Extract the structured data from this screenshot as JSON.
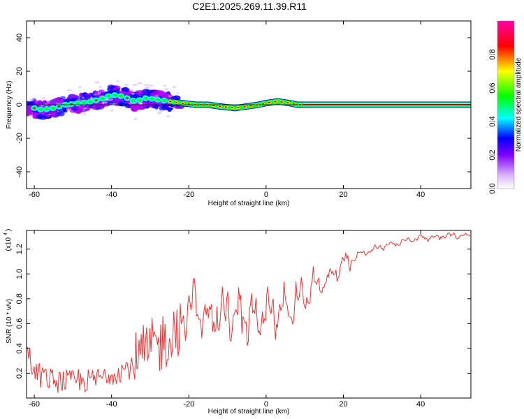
{
  "title": "C2E1.2025.269.11.39.R11",
  "colors": {
    "signal": "#ee3333",
    "background": "#ffffff",
    "axis": "#000000",
    "colorbar": [
      "#ffffff",
      "#b400ff",
      "#0000ff",
      "#00ffff",
      "#00ff00",
      "#ffff00",
      "#ff0000",
      "#ff00aa"
    ]
  },
  "chart_data": [
    {
      "type": "heatmap",
      "name": "spectrogram",
      "xlabel": "Height of straight line (km)",
      "ylabel": "Frequency (Hz)",
      "xlim": [
        -62,
        53
      ],
      "ylim": [
        -50,
        50
      ],
      "xticks": [
        "-60",
        "-40",
        "-20",
        "0",
        "20",
        "40"
      ],
      "yticks": [
        "-40",
        "-20",
        "0",
        "20",
        "40"
      ],
      "colorbar_label": "Normalized spectral amplitude",
      "colorbar_ticks": [
        "0.0",
        "0.2",
        "0.4",
        "0.6",
        "0.8"
      ],
      "ridge_center": [
        [
          -62,
          -1
        ],
        [
          -58,
          -3
        ],
        [
          -55,
          -2
        ],
        [
          -52,
          0
        ],
        [
          -48,
          1
        ],
        [
          -45,
          2
        ],
        [
          -42,
          4
        ],
        [
          -40,
          6
        ],
        [
          -37,
          5
        ],
        [
          -34,
          2
        ],
        [
          -31,
          4
        ],
        [
          -28,
          3
        ],
        [
          -25,
          2
        ],
        [
          -22,
          1
        ],
        [
          -18,
          0
        ],
        [
          -15,
          0
        ],
        [
          -12,
          -1
        ],
        [
          -8,
          -2
        ],
        [
          -5,
          -1
        ],
        [
          -2,
          0
        ],
        [
          0,
          1
        ],
        [
          3,
          2
        ],
        [
          6,
          1
        ],
        [
          8,
          0
        ],
        [
          15,
          0
        ],
        [
          30,
          0
        ],
        [
          53,
          0
        ]
      ]
    },
    {
      "type": "line",
      "name": "snr",
      "xlabel": "Height of straight line (km)",
      "ylabel": "SNR (10 * v/v)",
      "scale_label": "(x10",
      "scale_exp": "4",
      "xlim": [
        -62,
        53
      ],
      "ylim": [
        0,
        1.35
      ],
      "xticks": [
        "-60",
        "-40",
        "-20",
        "0",
        "20",
        "40"
      ],
      "yticks": [
        "0.2",
        "0.4",
        "0.6",
        "0.8",
        "1.0",
        "1.2"
      ],
      "trend": [
        [
          -62,
          0.42
        ],
        [
          -60,
          0.2
        ],
        [
          -55,
          0.14
        ],
        [
          -50,
          0.13
        ],
        [
          -45,
          0.14
        ],
        [
          -40,
          0.2
        ],
        [
          -35,
          0.25
        ],
        [
          -30,
          0.38
        ],
        [
          -25,
          0.5
        ],
        [
          -22,
          0.62
        ],
        [
          -20,
          0.7
        ],
        [
          -18,
          0.74
        ],
        [
          -15,
          0.62
        ],
        [
          -12,
          0.7
        ],
        [
          -10,
          0.73
        ],
        [
          -8,
          0.68
        ],
        [
          -5,
          0.66
        ],
        [
          -3,
          0.64
        ],
        [
          0,
          0.66
        ],
        [
          3,
          0.72
        ],
        [
          5,
          0.73
        ],
        [
          8,
          0.8
        ],
        [
          10,
          0.86
        ],
        [
          13,
          0.9
        ],
        [
          16,
          0.95
        ],
        [
          18,
          1.02
        ],
        [
          20,
          1.08
        ],
        [
          25,
          1.17
        ],
        [
          30,
          1.22
        ],
        [
          35,
          1.26
        ],
        [
          40,
          1.29
        ],
        [
          45,
          1.3
        ],
        [
          50,
          1.31
        ],
        [
          53,
          1.31
        ]
      ]
    }
  ]
}
